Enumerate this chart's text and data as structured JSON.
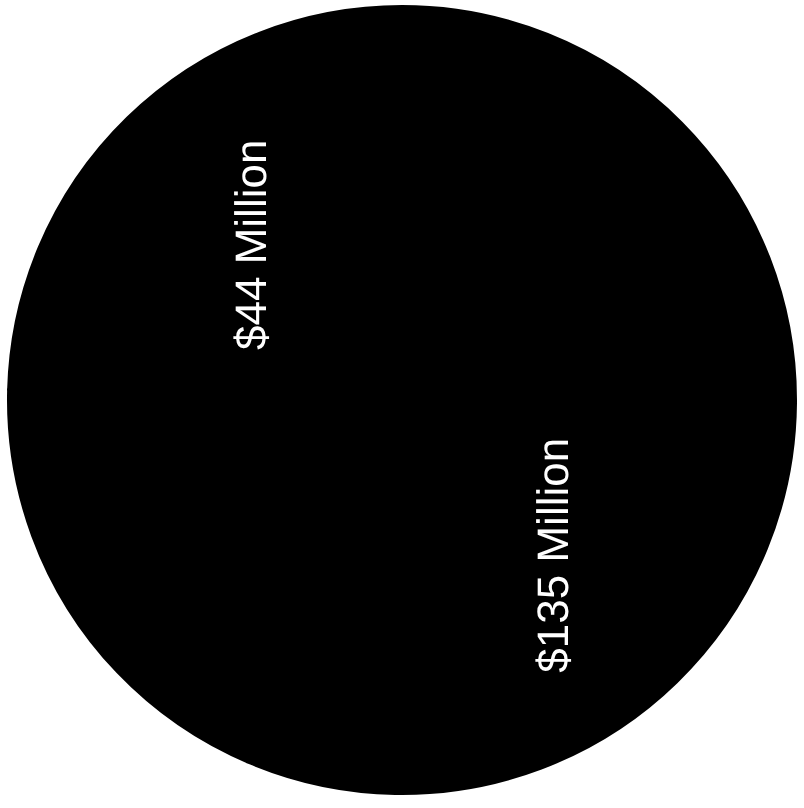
{
  "chart_data": {
    "type": "pie",
    "categories": [
      null,
      null
    ],
    "values": [
      44,
      135
    ],
    "colors": [
      "#000000",
      "#000000"
    ],
    "value_labels": [
      "$44 Million",
      "$135 Million"
    ]
  }
}
